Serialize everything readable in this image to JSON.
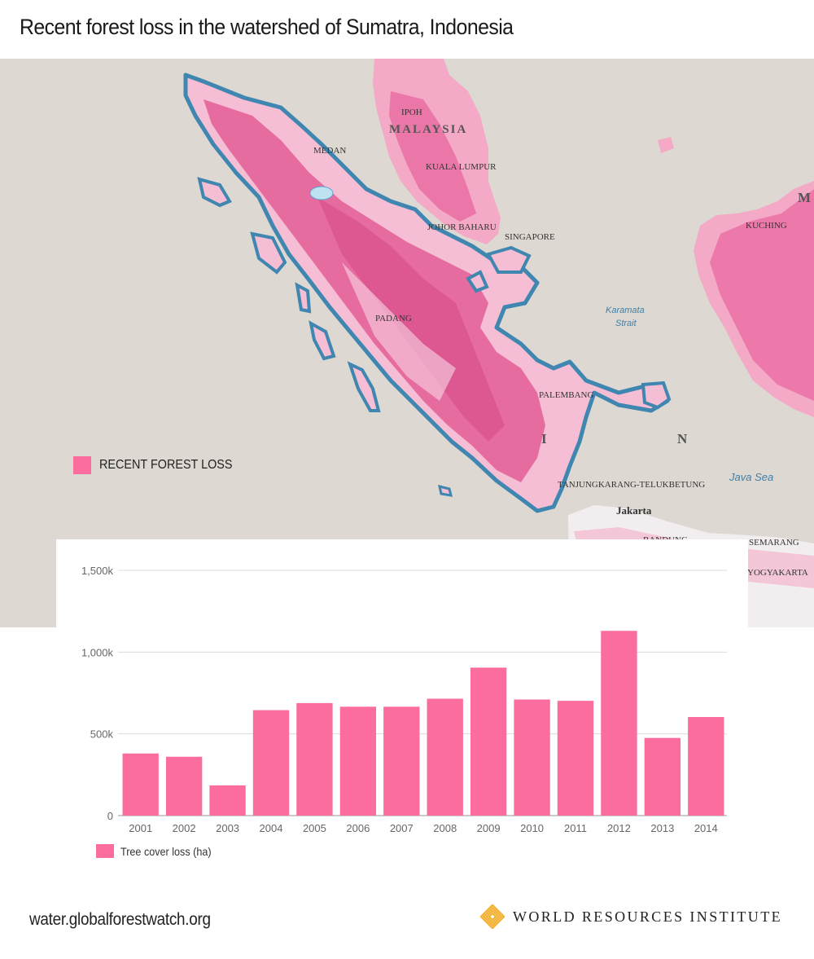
{
  "title": "Recent forest loss in the watershed of Sumatra, Indonesia",
  "map": {
    "legend_label": "RECENT FOREST LOSS",
    "loss_color": "#fb6c9f",
    "watershed_color": "#3f86b0",
    "labels": {
      "ipoh": "IPOH",
      "malaysia": "MALAYSIA",
      "medan": "MEDAN",
      "kuala_lumpur": "KUALA LUMPUR",
      "johor_baharu": "JOHOR BAHARU",
      "singapore": "SINGAPORE",
      "kuching": "KUCHING",
      "padang": "PADANG",
      "palembang": "PALEMBANG",
      "tanjungkarang": "TANJUNGKARANG-TELUKBETUNG",
      "jakarta": "Jakarta",
      "bandung": "BANDUNG",
      "semarang": "SEMARANG",
      "yogyakarta": "YOGYAKARTA",
      "i": "I",
      "n": "N",
      "m": "M",
      "karamata_1": "Karamata",
      "karamata_2": "Strait",
      "java_sea": "Java Sea"
    }
  },
  "chart_data": {
    "type": "bar",
    "categories": [
      "2001",
      "2002",
      "2003",
      "2004",
      "2005",
      "2006",
      "2007",
      "2008",
      "2009",
      "2010",
      "2011",
      "2012",
      "2013",
      "2014"
    ],
    "series": [
      {
        "name": "Tree cover loss (ha)",
        "color": "#fb6c9f",
        "values": [
          380000,
          360000,
          185000,
          645000,
          688000,
          666000,
          666000,
          715000,
          905000,
          710000,
          702000,
          1130000,
          475000,
          603000
        ]
      }
    ],
    "ylim": [
      0,
      1500000
    ],
    "yticks": [
      0,
      500000,
      1000000,
      1500000
    ],
    "ytick_labels": [
      "0",
      "500k",
      "1,000k",
      "1,500k"
    ],
    "grid": true,
    "legend": "bottom-left"
  },
  "footer": {
    "url": "water.globalforestwatch.org",
    "org": "WORLD RESOURCES INSTITUTE",
    "logo_color": "#f2b233"
  }
}
